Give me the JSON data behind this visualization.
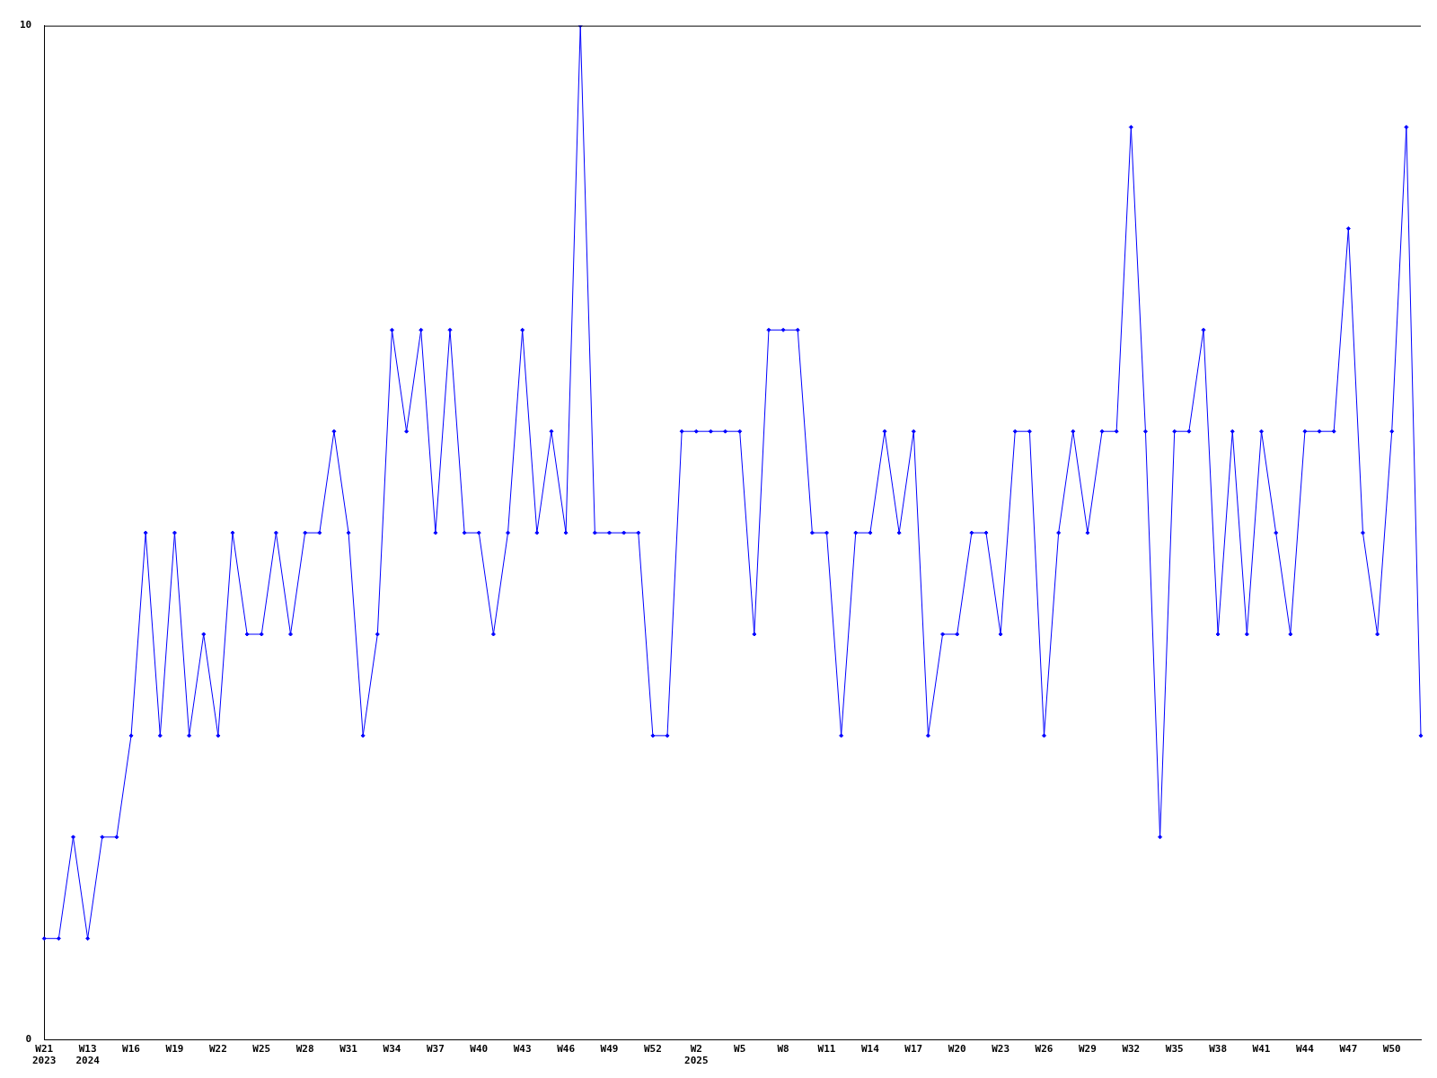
{
  "chart_data": {
    "type": "line",
    "categories": [
      "W21\n2023",
      null,
      null,
      "W13\n2024",
      null,
      null,
      "W16",
      null,
      null,
      "W19",
      null,
      null,
      "W22",
      null,
      null,
      "W25",
      null,
      null,
      "W28",
      null,
      null,
      "W31",
      null,
      null,
      "W34",
      null,
      null,
      "W37",
      null,
      null,
      "W40",
      null,
      null,
      "W43",
      null,
      null,
      "W46",
      null,
      null,
      "W49",
      null,
      null,
      "W52",
      null,
      null,
      "W2\n2025",
      null,
      null,
      "W5",
      null,
      null,
      "W8",
      null,
      null,
      "W11",
      null,
      null,
      "W14",
      null,
      null,
      "W17",
      null,
      null,
      "W20",
      null,
      null,
      "W23",
      null,
      null,
      "W26",
      null,
      null,
      "W29",
      null,
      null,
      "W32",
      null,
      null,
      "W35",
      null,
      null,
      "W38",
      null,
      null,
      "W41",
      null,
      null,
      "W44",
      null,
      null,
      "W47",
      null,
      null,
      "W50",
      null,
      null
    ],
    "series": [
      {
        "color": "#0000ff",
        "values": [
          1,
          1,
          2,
          1,
          2,
          2,
          3,
          5,
          3,
          5,
          3,
          4,
          3,
          5,
          4,
          4,
          5,
          4,
          5,
          5,
          6,
          5,
          3,
          4,
          7,
          6,
          7,
          5,
          7,
          5,
          5,
          4,
          5,
          7,
          5,
          6,
          5,
          10,
          5,
          5,
          5,
          5,
          3,
          3,
          6,
          6,
          6,
          6,
          6,
          4,
          7,
          7,
          7,
          5,
          5,
          3,
          5,
          5,
          6,
          5,
          6,
          3,
          4,
          4,
          5,
          5,
          4,
          6,
          6,
          3,
          5,
          6,
          5,
          6,
          6,
          9,
          6,
          2,
          6,
          6,
          7,
          4,
          6,
          4,
          6,
          5,
          4,
          6,
          6,
          6,
          8,
          5,
          4,
          6,
          9,
          3
        ]
      }
    ],
    "ylim": [
      0,
      10
    ],
    "yticks": [
      0,
      10
    ],
    "grid": false,
    "legend": false,
    "marker": "diamond",
    "line_style": "solid"
  }
}
